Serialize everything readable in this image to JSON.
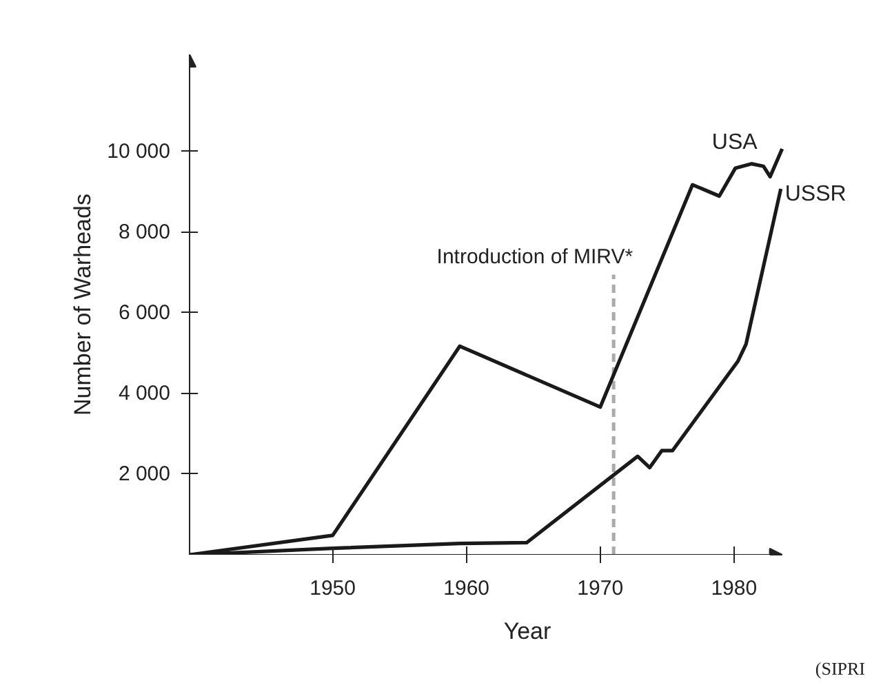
{
  "chart_data": {
    "type": "line",
    "xlabel": "Year",
    "ylabel": "Number of Warheads",
    "xlim": [
      1939.3,
      1983.6
    ],
    "ylim": [
      0,
      12400
    ],
    "xticks": [
      1950,
      1960,
      1970,
      1980
    ],
    "yticks": [
      {
        "value": 2000,
        "label": "2 000"
      },
      {
        "value": 4000,
        "label": "4 000"
      },
      {
        "value": 6000,
        "label": "6 000"
      },
      {
        "value": 8000,
        "label": "8 000"
      },
      {
        "value": 10000,
        "label": "10 000"
      }
    ],
    "grid": false,
    "marker": "none",
    "line_style": "solid",
    "series": [
      {
        "name": "USA",
        "color": "#1a1a1a",
        "x": [
          1939.3,
          1950,
          1959.5,
          1970,
          1976.9,
          1978.9,
          1980.1,
          1981.3,
          1982.2,
          1982.7,
          1983.6
        ],
        "values": [
          0,
          480,
          5170,
          3660,
          9170,
          8890,
          9580,
          9690,
          9630,
          9370,
          10060
        ]
      },
      {
        "name": "USSR",
        "color": "#1a1a1a",
        "x": [
          1939.3,
          1950,
          1959.5,
          1964.5,
          1972.8,
          1973.7,
          1974.6,
          1975.4,
          1980.3,
          1980.9,
          1983.5
        ],
        "values": [
          0,
          160,
          280,
          300,
          2440,
          2160,
          2580,
          2580,
          4800,
          5220,
          9070
        ]
      }
    ],
    "ref_lines": [
      {
        "axis": "x",
        "value": 1971,
        "label": "Introduction of MIRV*",
        "color": "#aaaaaa",
        "line_style": "dashed"
      }
    ],
    "annotations": [
      "(SIPRI"
    ]
  }
}
